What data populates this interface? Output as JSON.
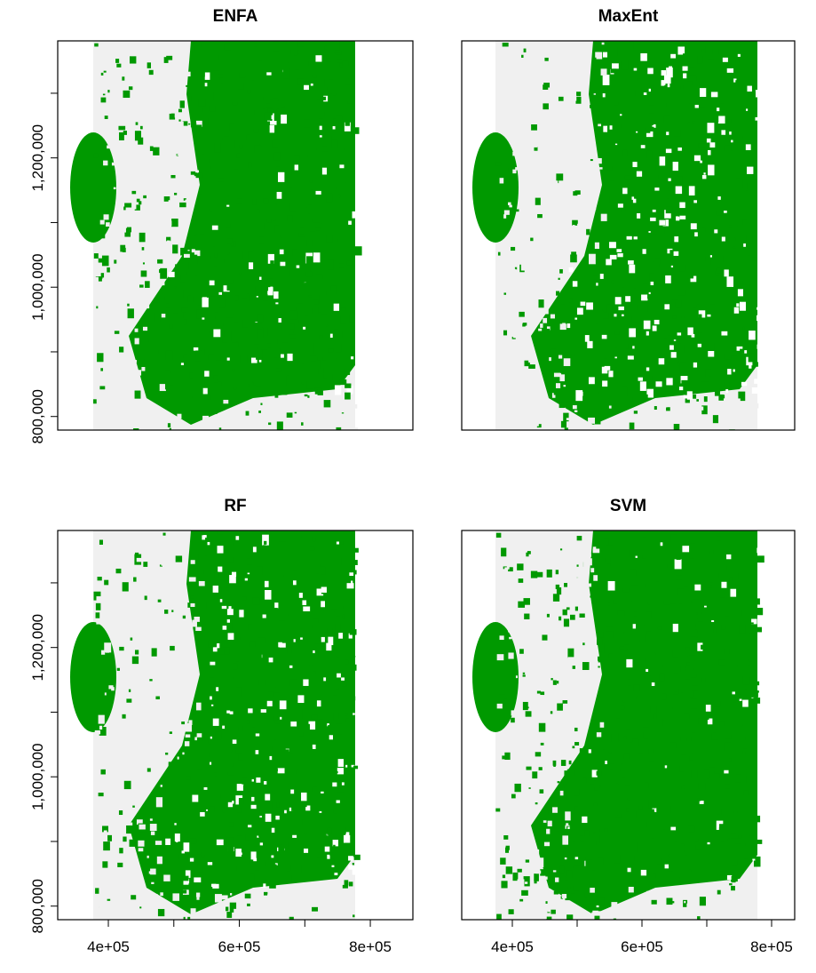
{
  "panels": [
    {
      "title": "ENFA",
      "xlim": [
        322700,
        865000
      ],
      "ylim": [
        779000,
        1381000
      ],
      "yticks": [
        {
          "value": 800000,
          "label": "800,000"
        },
        {
          "value": 900000,
          "label": null
        },
        {
          "value": 1000000,
          "label": "1,000,000"
        },
        {
          "value": 1100000,
          "label": null
        },
        {
          "value": 1200000,
          "label": "1,200,000"
        },
        {
          "value": 1300000,
          "label": null
        }
      ]
    },
    {
      "title": "MaxEnt",
      "xlim": [
        321900,
        835600
      ],
      "ylim": [
        779000,
        1381000
      ]
    },
    {
      "title": "RF",
      "xlim": [
        322700,
        865000
      ],
      "ylim": [
        779000,
        1381000
      ],
      "yticks": [
        {
          "value": 800000,
          "label": "800,000"
        },
        {
          "value": 900000,
          "label": null
        },
        {
          "value": 1000000,
          "label": "1,000,000"
        },
        {
          "value": 1100000,
          "label": null
        },
        {
          "value": 1200000,
          "label": "1,200,000"
        },
        {
          "value": 1300000,
          "label": null
        }
      ],
      "xticks": [
        {
          "value": 400000,
          "label": "4e+05"
        },
        {
          "value": 500000,
          "label": null
        },
        {
          "value": 600000,
          "label": "6e+05"
        },
        {
          "value": 700000,
          "label": null
        },
        {
          "value": 800000,
          "label": "8e+05"
        }
      ]
    },
    {
      "title": "SVM",
      "xlim": [
        321900,
        835600
      ],
      "ylim": [
        779000,
        1381000
      ],
      "xticks": [
        {
          "value": 400000,
          "label": "4e+05"
        },
        {
          "value": 500000,
          "label": null
        },
        {
          "value": 600000,
          "label": "6e+05"
        },
        {
          "value": 700000,
          "label": null
        },
        {
          "value": 800000,
          "label": "8e+05"
        }
      ]
    }
  ]
}
